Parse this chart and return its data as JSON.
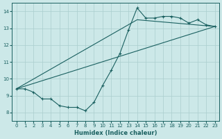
{
  "bg_color": "#cce8e8",
  "grid_color": "#aacece",
  "line_color": "#1a6060",
  "xlabel": "Humidex (Indice chaleur)",
  "xlim": [
    -0.5,
    23.5
  ],
  "ylim": [
    7.5,
    14.5
  ],
  "xticks": [
    0,
    1,
    2,
    3,
    4,
    5,
    6,
    7,
    8,
    9,
    10,
    11,
    12,
    13,
    14,
    15,
    16,
    17,
    18,
    19,
    20,
    21,
    22,
    23
  ],
  "yticks": [
    8,
    9,
    10,
    11,
    12,
    13,
    14
  ],
  "line1_x": [
    0,
    1,
    2,
    3,
    4,
    5,
    6,
    7,
    8,
    9,
    10,
    11,
    12,
    13,
    14,
    15,
    16,
    17,
    18,
    19,
    20,
    21,
    22,
    23
  ],
  "line1_y": [
    9.4,
    9.4,
    9.2,
    8.8,
    8.8,
    8.4,
    8.3,
    8.3,
    8.1,
    8.6,
    9.6,
    10.5,
    11.5,
    12.9,
    14.2,
    13.6,
    13.6,
    13.7,
    13.7,
    13.6,
    13.3,
    13.5,
    13.2,
    13.1
  ],
  "line2_x": [
    0,
    23
  ],
  "line2_y": [
    9.4,
    13.1
  ],
  "line3_x": [
    0,
    14,
    23
  ],
  "line3_y": [
    9.4,
    13.5,
    13.1
  ]
}
